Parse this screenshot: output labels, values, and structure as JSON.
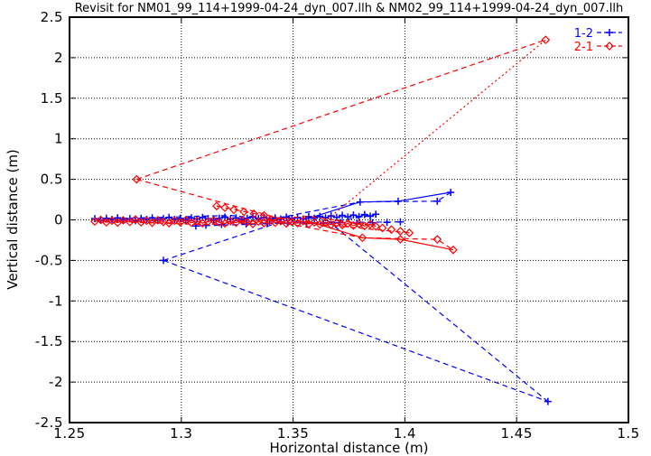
{
  "chart_data": {
    "type": "scatter",
    "title": "Revisit for NM01_99_114+1999-04-24_dyn_007.llh & NM02_99_114+1999-04-24_dyn_007.llh",
    "xlabel": "Horizontal distance (m)",
    "ylabel": "Vertical distance (m)",
    "xlim": [
      1.25,
      1.5
    ],
    "ylim": [
      -2.5,
      2.5
    ],
    "grid": true,
    "grid_style": "dotted-black",
    "legend_position": "top-right-inside",
    "background": "#ffffff",
    "xticks": [
      {
        "value": 1.25,
        "label": "1.25"
      },
      {
        "value": 1.3,
        "label": "1.3"
      },
      {
        "value": 1.35,
        "label": "1.35"
      },
      {
        "value": 1.4,
        "label": "1.4"
      },
      {
        "value": 1.45,
        "label": "1.45"
      },
      {
        "value": 1.5,
        "label": "1.5"
      }
    ],
    "yticks": [
      {
        "value": -2.5,
        "label": "-2.5"
      },
      {
        "value": -2,
        "label": "-2"
      },
      {
        "value": -1.5,
        "label": "-1.5"
      },
      {
        "value": -1,
        "label": "-1"
      },
      {
        "value": -0.5,
        "label": "-0.5"
      },
      {
        "value": 0,
        "label": "0"
      },
      {
        "value": 0.5,
        "label": "0.5"
      },
      {
        "value": 1,
        "label": "1"
      },
      {
        "value": 1.5,
        "label": "1.5"
      },
      {
        "value": 2,
        "label": "2"
      },
      {
        "value": 2.5,
        "label": "2.5"
      }
    ],
    "series": [
      {
        "name": "1-2",
        "color": "#0000ff",
        "marker": "plus",
        "cluster": [
          [
            1.2613,
            0.015
          ],
          [
            1.264,
            -0.005
          ],
          [
            1.2665,
            0.02
          ],
          [
            1.269,
            0.005
          ],
          [
            1.2715,
            0.025
          ],
          [
            1.274,
            0
          ],
          [
            1.277,
            0.015
          ],
          [
            1.2795,
            -0.01
          ],
          [
            1.282,
            0.02
          ],
          [
            1.2845,
            0.005
          ],
          [
            1.287,
            0.025
          ],
          [
            1.2895,
            0
          ],
          [
            1.292,
            0.015
          ],
          [
            1.2945,
            0.03
          ],
          [
            1.297,
            0.005
          ],
          [
            1.2995,
            0.02
          ],
          [
            1.302,
            0
          ],
          [
            1.3045,
            0.025
          ],
          [
            1.307,
            0.01
          ],
          [
            1.3095,
            0.03
          ],
          [
            1.312,
            0.015
          ],
          [
            1.3145,
            0
          ],
          [
            1.317,
            0.02
          ],
          [
            1.3195,
            0.035
          ],
          [
            1.322,
            0.01
          ],
          [
            1.3245,
            0.025
          ],
          [
            1.327,
            0
          ],
          [
            1.3295,
            0.02
          ],
          [
            1.332,
            0.04
          ],
          [
            1.3345,
            0.015
          ],
          [
            1.337,
            0.03
          ],
          [
            1.3395,
            0.005
          ],
          [
            1.342,
            0.025
          ],
          [
            1.3445,
            0.01
          ],
          [
            1.347,
            0.035
          ],
          [
            1.3495,
            0.015
          ],
          [
            1.352,
            0.03
          ],
          [
            1.3545,
            0.01
          ],
          [
            1.357,
            0.04
          ],
          [
            1.3595,
            0.02
          ],
          [
            1.362,
            0.045
          ],
          [
            1.3645,
            0.025
          ],
          [
            1.367,
            0.05
          ],
          [
            1.3695,
            0.03
          ],
          [
            1.372,
            0.055
          ],
          [
            1.3745,
            0.035
          ],
          [
            1.377,
            0.06
          ],
          [
            1.3795,
            0.04
          ],
          [
            1.382,
            0.065
          ],
          [
            1.3845,
            0.045
          ],
          [
            1.387,
            0.07
          ]
        ],
        "scatter_extra": [
          [
            1.3065,
            -0.075
          ],
          [
            1.311,
            -0.065
          ],
          [
            1.318,
            -0.055
          ],
          [
            1.329,
            -0.05
          ],
          [
            1.3385,
            -0.045
          ],
          [
            1.3475,
            -0.04
          ],
          [
            1.356,
            -0.045
          ],
          [
            1.3635,
            -0.04
          ],
          [
            1.371,
            -0.035
          ],
          [
            1.3785,
            -0.04
          ],
          [
            1.3855,
            -0.035
          ],
          [
            1.392,
            -0.03
          ],
          [
            1.398,
            -0.025
          ]
        ],
        "branch": [
          [
            1.38,
            0.22
          ],
          [
            1.397,
            0.23
          ],
          [
            1.4145,
            0.23
          ],
          [
            1.4205,
            0.34
          ]
        ],
        "outliers": [
          [
            1.292,
            -0.5
          ],
          [
            1.464,
            -2.24
          ]
        ],
        "lines": [
          {
            "style": "solid",
            "ref": "cluster"
          },
          {
            "style": "solid",
            "pts": [
              [
                1.356,
                0.01
              ],
              [
                1.38,
                0.22
              ],
              [
                1.397,
                0.23
              ],
              [
                1.4205,
                0.34
              ]
            ]
          },
          {
            "style": "dashed",
            "pts": [
              [
                1.292,
                -0.5
              ],
              [
                1.464,
                -2.24
              ]
            ]
          },
          {
            "style": "dashed",
            "pts": [
              [
                1.3655,
                -0.01
              ],
              [
                1.464,
                -2.24
              ]
            ]
          },
          {
            "style": "dashed",
            "pts": [
              [
                1.292,
                -0.5
              ],
              [
                1.3455,
                -0.015
              ]
            ]
          },
          {
            "style": "dashed",
            "pts": [
              [
                1.2613,
                0.01
              ],
              [
                1.322,
                0.055
              ],
              [
                1.362,
                -0.05
              ],
              [
                1.387,
                0.065
              ]
            ]
          },
          {
            "style": "dashed",
            "pts": [
              [
                1.3065,
                -0.075
              ],
              [
                1.3475,
                -0.04
              ],
              [
                1.398,
                -0.025
              ]
            ]
          },
          {
            "style": "dashed",
            "pts": [
              [
                1.3395,
                0.005
              ],
              [
                1.38,
                0.22
              ],
              [
                1.4145,
                0.23
              ],
              [
                1.4205,
                0.34
              ]
            ]
          }
        ]
      },
      {
        "name": "2-1",
        "color": "#ff0000",
        "marker": "diamond",
        "cluster": [
          [
            1.2613,
            -0.02
          ],
          [
            1.264,
            0
          ],
          [
            1.2665,
            -0.03
          ],
          [
            1.269,
            -0.01
          ],
          [
            1.2715,
            -0.035
          ],
          [
            1.274,
            -0.005
          ],
          [
            1.277,
            -0.025
          ],
          [
            1.2795,
            0.005
          ],
          [
            1.282,
            -0.03
          ],
          [
            1.2845,
            -0.01
          ],
          [
            1.287,
            -0.035
          ],
          [
            1.2895,
            -0.005
          ],
          [
            1.292,
            -0.025
          ],
          [
            1.2945,
            -0.04
          ],
          [
            1.297,
            -0.01
          ],
          [
            1.2995,
            -0.03
          ],
          [
            1.302,
            -0.005
          ],
          [
            1.3045,
            -0.035
          ],
          [
            1.307,
            -0.015
          ],
          [
            1.3095,
            -0.04
          ],
          [
            1.312,
            -0.02
          ],
          [
            1.3145,
            -0.005
          ],
          [
            1.317,
            -0.03
          ],
          [
            1.3195,
            -0.045
          ],
          [
            1.322,
            -0.015
          ],
          [
            1.3245,
            -0.035
          ],
          [
            1.327,
            -0.005
          ],
          [
            1.3295,
            -0.03
          ],
          [
            1.332,
            -0.05
          ],
          [
            1.3345,
            -0.02
          ],
          [
            1.337,
            -0.04
          ],
          [
            1.3395,
            -0.01
          ],
          [
            1.342,
            -0.035
          ],
          [
            1.3445,
            -0.015
          ],
          [
            1.347,
            -0.045
          ],
          [
            1.3495,
            -0.025
          ],
          [
            1.352,
            -0.04
          ],
          [
            1.3545,
            -0.015
          ],
          [
            1.357,
            -0.05
          ],
          [
            1.3595,
            -0.03
          ],
          [
            1.362,
            -0.055
          ],
          [
            1.3645,
            -0.035
          ],
          [
            1.367,
            -0.06
          ],
          [
            1.3695,
            -0.04
          ],
          [
            1.372,
            -0.065
          ],
          [
            1.3745,
            -0.045
          ],
          [
            1.377,
            -0.07
          ],
          [
            1.3795,
            -0.05
          ],
          [
            1.382,
            -0.075
          ],
          [
            1.3845,
            -0.055
          ],
          [
            1.387,
            -0.08
          ]
        ],
        "scatter_extra": [
          [
            1.3158,
            0.17
          ],
          [
            1.3195,
            0.15
          ],
          [
            1.3235,
            0.125
          ],
          [
            1.328,
            0.1
          ],
          [
            1.3325,
            0.075
          ],
          [
            1.337,
            0.055
          ],
          [
            1.39,
            -0.1
          ],
          [
            1.394,
            -0.12
          ],
          [
            1.398,
            -0.14
          ],
          [
            1.402,
            -0.16
          ]
        ],
        "branch": [
          [
            1.381,
            -0.22
          ],
          [
            1.398,
            -0.24
          ],
          [
            1.4145,
            -0.24
          ],
          [
            1.4216,
            -0.37
          ]
        ],
        "outliers": [
          [
            1.28,
            0.5
          ],
          [
            1.463,
            2.22
          ]
        ],
        "lines": [
          {
            "style": "solid",
            "ref": "cluster"
          },
          {
            "style": "solid",
            "pts": [
              [
                1.356,
                -0.01
              ],
              [
                1.381,
                -0.22
              ],
              [
                1.398,
                -0.24
              ],
              [
                1.4216,
                -0.37
              ]
            ]
          },
          {
            "style": "dashed",
            "pts": [
              [
                1.28,
                0.5
              ],
              [
                1.463,
                2.22
              ]
            ]
          },
          {
            "style": "dotted",
            "pts": [
              [
                1.3655,
                0.01
              ],
              [
                1.463,
                2.22
              ]
            ]
          },
          {
            "style": "dashed",
            "pts": [
              [
                1.28,
                0.5
              ],
              [
                1.3445,
                0.015
              ]
            ]
          },
          {
            "style": "dashed",
            "pts": [
              [
                1.3158,
                0.17
              ],
              [
                1.337,
                0.055
              ],
              [
                1.362,
                -0.055
              ],
              [
                1.402,
                -0.16
              ]
            ]
          },
          {
            "style": "dashed",
            "pts": [
              [
                1.2613,
                -0.015
              ],
              [
                1.312,
                -0.06
              ],
              [
                1.357,
                0.045
              ],
              [
                1.387,
                -0.075
              ]
            ]
          },
          {
            "style": "dashed",
            "pts": [
              [
                1.3395,
                -0.005
              ],
              [
                1.381,
                -0.22
              ],
              [
                1.4145,
                -0.24
              ],
              [
                1.4216,
                -0.37
              ]
            ]
          }
        ]
      }
    ]
  }
}
